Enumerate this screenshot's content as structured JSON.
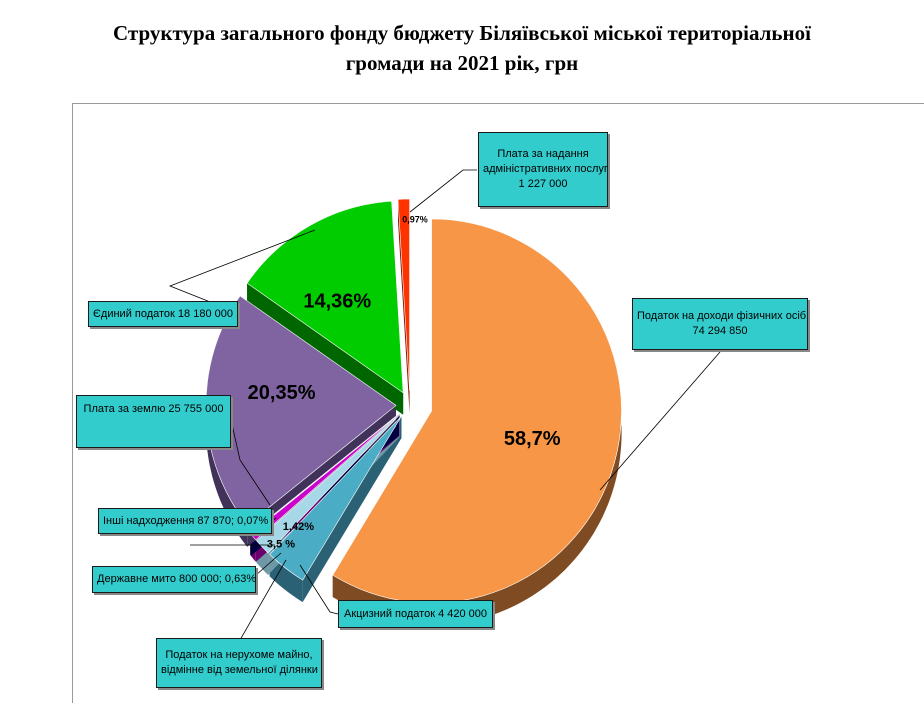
{
  "title": {
    "line1": "Структура загального фонду бюджету Біляївської міської територіальної",
    "line2": "громади на 2021 рік, грн"
  },
  "chart_data": {
    "type": "pie",
    "title": "Структура загального фонду бюджету Біляївської міської територіальної громади на 2021 рік, грн",
    "slices": [
      {
        "label": "Податок на доходи фізичних осіб",
        "value": 74294850,
        "percent_label": "58,7%",
        "color": "#f79646",
        "side_color": "#7e4b22"
      },
      {
        "label": "Акцизний податок",
        "value": 4420000,
        "percent_label": "3,5 %",
        "color": "#4bacc6",
        "side_color": "#2a6175"
      },
      {
        "label": "Податок на нерухоме майно, відмінне від земельної ділянки",
        "value": 1798000,
        "percent_label": "1,42%",
        "color": "#a6d8e8",
        "side_color": "#6e98a6"
      },
      {
        "label": "Державне мито",
        "value": 800000,
        "percent_label": "0,63%",
        "color": "#cc00cc",
        "side_color": "#6e006e"
      },
      {
        "label": "Інші надходження",
        "value": 87870,
        "percent_label": "0,07%",
        "color": "#000080",
        "side_color": "#000040"
      },
      {
        "label": "Плата за землю",
        "value": 25755000,
        "percent_label": "20,35%",
        "color": "#8064a2",
        "side_color": "#41325a"
      },
      {
        "label": "Єдиний податок",
        "value": 18180000,
        "percent_label": "14,36%",
        "color": "#00cc00",
        "side_color": "#006600"
      },
      {
        "label": "Плата за надання адміністративних послуг",
        "value": 1227000,
        "percent_label": "0,97%",
        "color": "#ff3300",
        "side_color": "#8a1c00"
      }
    ]
  },
  "callouts": {
    "pdfo": {
      "line1": "Податок на доходи фізичних осіб",
      "line2": "74 294 850"
    },
    "admin": {
      "line1": "Плата за надання",
      "line2": "адміністративних послуг",
      "line3": "1 227 000"
    },
    "single": {
      "text": "Єдиний податок 18 180 000"
    },
    "land": {
      "text": "Плата за землю 25 755 000"
    },
    "other": {
      "text": "Інші надходження 87 870; 0,07%"
    },
    "duty": {
      "text": "Державне мито 800 000; 0,63%"
    },
    "excise": {
      "text": "Акцизний податок 4 420 000"
    },
    "property": {
      "line1": "Податок на нерухоме майно,",
      "line2": "відмінне від земельної ділянки"
    }
  }
}
